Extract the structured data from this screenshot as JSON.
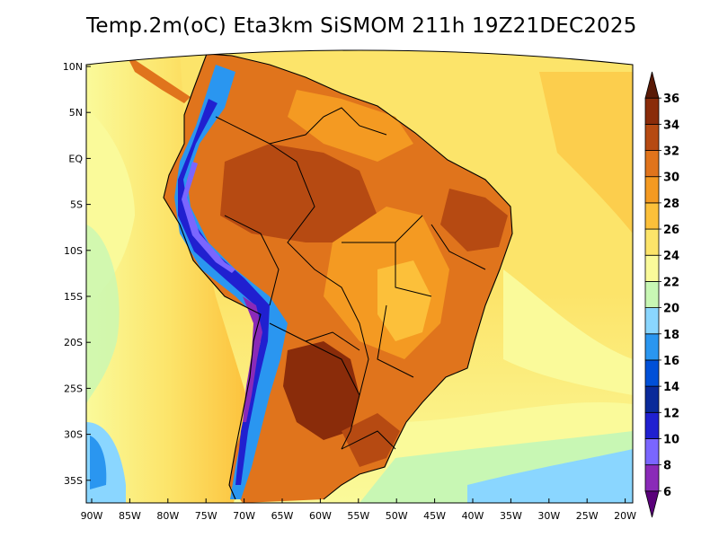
{
  "title": "Temp.2m(oC) Eta3km SiSMOM 211h 19Z21DEC2025",
  "lat_labels": [
    "10N",
    "5N",
    "EQ",
    "5S",
    "10S",
    "15S",
    "20S",
    "25S",
    "30S",
    "35S"
  ],
  "lon_labels": [
    "90W",
    "85W",
    "80W",
    "75W",
    "70W",
    "65W",
    "60W",
    "55W",
    "50W",
    "45W",
    "40W",
    "35W",
    "30W",
    "25W",
    "20W"
  ],
  "colorbar": {
    "levels": [
      "6",
      "8",
      "10",
      "12",
      "14",
      "16",
      "18",
      "20",
      "22",
      "24",
      "26",
      "28",
      "30",
      "32",
      "34",
      "36"
    ],
    "colors": [
      "#5a007a",
      "#8a2ab8",
      "#7a66ff",
      "#2020d0",
      "#0a2a9a",
      "#0050d8",
      "#2a96f0",
      "#8ad6ff",
      "#c8f7b4",
      "#fafa9a",
      "#fce46a",
      "#fcc03a",
      "#f49a22",
      "#e0741c",
      "#b64a12",
      "#8a2c0a",
      "#5a1a06"
    ]
  },
  "palette": {
    "ocean_warm": "#fce46a",
    "ocean_cool": "#fafa9a",
    "ocean_cold": "#8ad6ff",
    "land_hot": "#b64a12",
    "land_warm": "#e0741c",
    "andes_cold": "#2020d0"
  }
}
